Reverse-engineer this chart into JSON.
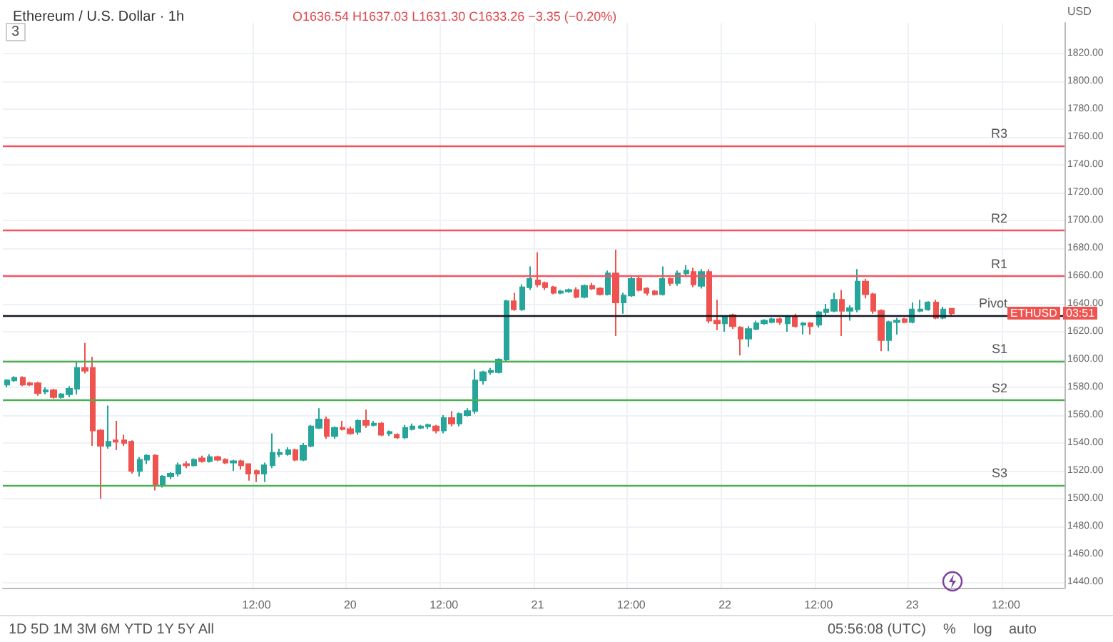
{
  "chart_data": {
    "type": "candlestick",
    "title": "Ethereum / U.S. Dollar · 1h",
    "subtitle": "O1636.54 H1637.03 L1631.30 C1633.26 −3.35 (−0.20%)",
    "ylabel": "USD",
    "categories": [
      null,
      null,
      null,
      null,
      null,
      null,
      null,
      null,
      null,
      null,
      null,
      null,
      null,
      null,
      null,
      null,
      null,
      null,
      null,
      null,
      null,
      null,
      null,
      null,
      null,
      null,
      null,
      null,
      null,
      null,
      null,
      null,
      "12:00",
      null,
      null,
      null,
      null,
      null,
      null,
      null,
      null,
      null,
      null,
      null,
      "20",
      null,
      null,
      null,
      null,
      null,
      null,
      null,
      null,
      null,
      null,
      null,
      "12:00",
      null,
      null,
      null,
      null,
      null,
      null,
      null,
      null,
      null,
      null,
      null,
      "21",
      null,
      null,
      null,
      null,
      null,
      null,
      null,
      null,
      null,
      null,
      null,
      "12:00",
      null,
      null,
      null,
      null,
      null,
      null,
      null,
      null,
      null,
      null,
      null,
      "22",
      null,
      null,
      null,
      null,
      null,
      null,
      null,
      null,
      null,
      null,
      null,
      "12:00",
      null,
      null,
      null,
      null,
      null,
      null,
      null,
      null,
      null,
      null,
      null,
      "23",
      null,
      null,
      null,
      null,
      null,
      null,
      null,
      null,
      null,
      null,
      null,
      "12:00",
      null,
      null,
      null,
      null,
      null,
      null,
      null
    ],
    "ohlc": [
      [
        1582,
        1586,
        1580,
        1585
      ],
      [
        1585,
        1588,
        1584,
        1587
      ],
      [
        1587,
        1588,
        1581,
        1582
      ],
      [
        1583,
        1584,
        1581,
        1582
      ],
      [
        1583,
        1584,
        1574,
        1576
      ],
      [
        1577,
        1580,
        1575,
        1578
      ],
      [
        1578,
        1579,
        1572,
        1573
      ],
      [
        1573,
        1576,
        1572,
        1575
      ],
      [
        1575,
        1581,
        1573,
        1579
      ],
      [
        1579,
        1599,
        1575,
        1594
      ],
      [
        1594,
        1612,
        1590,
        1592
      ],
      [
        1594,
        1602,
        1538,
        1549
      ],
      [
        1549,
        1550,
        1500,
        1538
      ],
      [
        1538,
        1567,
        1536,
        1541
      ],
      [
        1542,
        1556,
        1535,
        1541
      ],
      [
        1542,
        1546,
        1538,
        1540
      ],
      [
        1541,
        1542,
        1518,
        1520
      ],
      [
        1520,
        1530,
        1516,
        1528
      ],
      [
        1528,
        1532,
        1525,
        1531
      ],
      [
        1531,
        1532,
        1506,
        1510
      ],
      [
        1510,
        1517,
        1508,
        1516
      ],
      [
        1516,
        1519,
        1514,
        1518
      ],
      [
        1518,
        1526,
        1516,
        1524
      ],
      [
        1525,
        1527,
        1522,
        1524
      ],
      [
        1524,
        1529,
        1523,
        1528
      ],
      [
        1529,
        1531,
        1526,
        1527
      ],
      [
        1527,
        1532,
        1526,
        1530
      ],
      [
        1530,
        1531,
        1527,
        1528
      ],
      [
        1528,
        1529,
        1525,
        1526
      ],
      [
        1526,
        1528,
        1520,
        1527
      ],
      [
        1527,
        1528,
        1521,
        1524
      ],
      [
        1525,
        1525,
        1513,
        1518
      ],
      [
        1520,
        1521,
        1512,
        1518
      ],
      [
        1518,
        1526,
        1512,
        1524
      ],
      [
        1524,
        1547,
        1522,
        1533
      ],
      [
        1532,
        1536,
        1530,
        1533
      ],
      [
        1532,
        1537,
        1531,
        1535
      ],
      [
        1535,
        1536,
        1527,
        1528
      ],
      [
        1528,
        1540,
        1527,
        1538
      ],
      [
        1538,
        1553,
        1537,
        1552
      ],
      [
        1551,
        1565,
        1550,
        1557
      ],
      [
        1557,
        1559,
        1543,
        1545
      ],
      [
        1545,
        1552,
        1543,
        1551
      ],
      [
        1551,
        1556,
        1549,
        1550
      ],
      [
        1550,
        1552,
        1546,
        1547
      ],
      [
        1548,
        1557,
        1546,
        1556
      ],
      [
        1556,
        1564,
        1551,
        1553
      ],
      [
        1553,
        1556,
        1552,
        1554
      ],
      [
        1554,
        1555,
        1545,
        1546
      ],
      [
        1547,
        1549,
        1545,
        1548
      ],
      [
        1546,
        1547,
        1543,
        1544
      ],
      [
        1544,
        1553,
        1543,
        1551
      ],
      [
        1550,
        1554,
        1549,
        1552
      ],
      [
        1551,
        1553,
        1550,
        1552
      ],
      [
        1552,
        1554,
        1550,
        1553
      ],
      [
        1552,
        1553,
        1547,
        1549
      ],
      [
        1549,
        1560,
        1547,
        1558
      ],
      [
        1558,
        1563,
        1552,
        1554
      ],
      [
        1554,
        1562,
        1552,
        1561
      ],
      [
        1560,
        1565,
        1559,
        1563
      ],
      [
        1563,
        1593,
        1561,
        1585
      ],
      [
        1585,
        1592,
        1582,
        1591
      ],
      [
        1591,
        1594,
        1589,
        1592
      ],
      [
        1591,
        1601,
        1590,
        1600
      ],
      [
        1600,
        1643,
        1598,
        1642
      ],
      [
        1642,
        1648,
        1635,
        1636
      ],
      [
        1636,
        1654,
        1635,
        1652
      ],
      [
        1652,
        1667,
        1650,
        1658
      ],
      [
        1657,
        1677,
        1652,
        1654
      ],
      [
        1655,
        1656,
        1650,
        1652
      ],
      [
        1652,
        1653,
        1647,
        1648
      ],
      [
        1648,
        1650,
        1647,
        1649
      ],
      [
        1649,
        1651,
        1648,
        1650
      ],
      [
        1650,
        1652,
        1644,
        1645
      ],
      [
        1645,
        1654,
        1644,
        1653
      ],
      [
        1653,
        1655,
        1650,
        1651
      ],
      [
        1651,
        1652,
        1646,
        1647
      ],
      [
        1647,
        1664,
        1646,
        1662
      ],
      [
        1662,
        1679,
        1617,
        1641
      ],
      [
        1641,
        1648,
        1633,
        1646
      ],
      [
        1646,
        1660,
        1645,
        1658
      ],
      [
        1658,
        1660,
        1649,
        1650
      ],
      [
        1651,
        1652,
        1646,
        1648
      ],
      [
        1649,
        1650,
        1646,
        1647
      ],
      [
        1647,
        1667,
        1646,
        1658
      ],
      [
        1658,
        1659,
        1653,
        1655
      ],
      [
        1655,
        1664,
        1653,
        1662
      ],
      [
        1662,
        1668,
        1660,
        1664
      ],
      [
        1663,
        1666,
        1652,
        1654
      ],
      [
        1653,
        1665,
        1651,
        1663
      ],
      [
        1663,
        1665,
        1626,
        1628
      ],
      [
        1628,
        1643,
        1621,
        1626
      ],
      [
        1626,
        1632,
        1620,
        1631
      ],
      [
        1632,
        1633,
        1622,
        1624
      ],
      [
        1623,
        1624,
        1603,
        1615
      ],
      [
        1615,
        1624,
        1609,
        1622
      ],
      [
        1622,
        1628,
        1621,
        1626
      ],
      [
        1626,
        1629,
        1625,
        1628
      ],
      [
        1627,
        1630,
        1626,
        1629
      ],
      [
        1629,
        1630,
        1625,
        1627
      ],
      [
        1626,
        1632,
        1620,
        1631
      ],
      [
        1631,
        1633,
        1623,
        1624
      ],
      [
        1625,
        1627,
        1618,
        1626
      ],
      [
        1626,
        1627,
        1618,
        1624
      ],
      [
        1625,
        1635,
        1623,
        1634
      ],
      [
        1634,
        1640,
        1632,
        1636
      ],
      [
        1635,
        1648,
        1634,
        1643
      ],
      [
        1643,
        1650,
        1617,
        1635
      ],
      [
        1635,
        1639,
        1628,
        1637
      ],
      [
        1636,
        1665,
        1634,
        1656
      ],
      [
        1656,
        1658,
        1644,
        1647
      ],
      [
        1647,
        1648,
        1633,
        1635
      ],
      [
        1635,
        1636,
        1606,
        1614
      ],
      [
        1614,
        1628,
        1606,
        1627
      ],
      [
        1627,
        1630,
        1618,
        1628
      ],
      [
        1629,
        1630,
        1626,
        1627
      ],
      [
        1627,
        1641,
        1626,
        1636
      ],
      [
        1635,
        1643,
        1634,
        1636
      ],
      [
        1636,
        1642,
        1635,
        1641
      ],
      [
        1641,
        1643,
        1629,
        1630
      ],
      [
        1630,
        1638,
        1629,
        1636
      ],
      [
        1636.54,
        1637.03,
        1631.3,
        1633.26
      ],
      null,
      null,
      null,
      null,
      null,
      null,
      null,
      null,
      null,
      null,
      null,
      null,
      null,
      null
    ],
    "ylim": [
      1436,
      1842
    ],
    "yticks": [
      {
        "value": 1440,
        "label": "1440.00"
      },
      {
        "value": 1460,
        "label": "1460.00"
      },
      {
        "value": 1480,
        "label": "1480.00"
      },
      {
        "value": 1500,
        "label": "1500.00"
      },
      {
        "value": 1520,
        "label": "1520.00"
      },
      {
        "value": 1540,
        "label": "1540.00"
      },
      {
        "value": 1560,
        "label": "1560.00"
      },
      {
        "value": 1580,
        "label": "1580.00"
      },
      {
        "value": 1600,
        "label": "1600.00"
      },
      {
        "value": 1620,
        "label": "1620.00"
      },
      {
        "value": 1640,
        "label": "1640.00"
      },
      {
        "value": 1660,
        "label": "1660.00"
      },
      {
        "value": 1680,
        "label": "1680.00"
      },
      {
        "value": 1700,
        "label": "1700.00"
      },
      {
        "value": 1720,
        "label": "1720.00"
      },
      {
        "value": 1740,
        "label": "1740.00"
      },
      {
        "value": 1760,
        "label": "1760.00"
      },
      {
        "value": 1780,
        "label": "1780.00"
      },
      {
        "value": 1800,
        "label": "1800.00"
      },
      {
        "value": 1820,
        "label": "1820.00"
      }
    ],
    "ref_lines": [
      {
        "axis": "y",
        "value": 1754,
        "label": "R3",
        "color": "#f7525f"
      },
      {
        "axis": "y",
        "value": 1693,
        "label": "R2",
        "color": "#f7525f"
      },
      {
        "axis": "y",
        "value": 1660,
        "label": "R1",
        "color": "#f7525f"
      },
      {
        "axis": "y",
        "value": 1632,
        "label": "Pivot",
        "color": "#131722"
      },
      {
        "axis": "y",
        "value": 1599,
        "label": "S1",
        "color": "#4caf50"
      },
      {
        "axis": "y",
        "value": 1571,
        "label": "S2",
        "color": "#4caf50"
      },
      {
        "axis": "y",
        "value": 1510,
        "label": "S3",
        "color": "#4caf50"
      }
    ],
    "grid": true,
    "annotations": [
      "3",
      "1D  5D  1M  3M  6M  YTD  1Y  5Y  All",
      "05:56:08 (UTC)",
      "%",
      "log",
      "auto",
      "ETHUSD",
      "03:51"
    ]
  }
}
